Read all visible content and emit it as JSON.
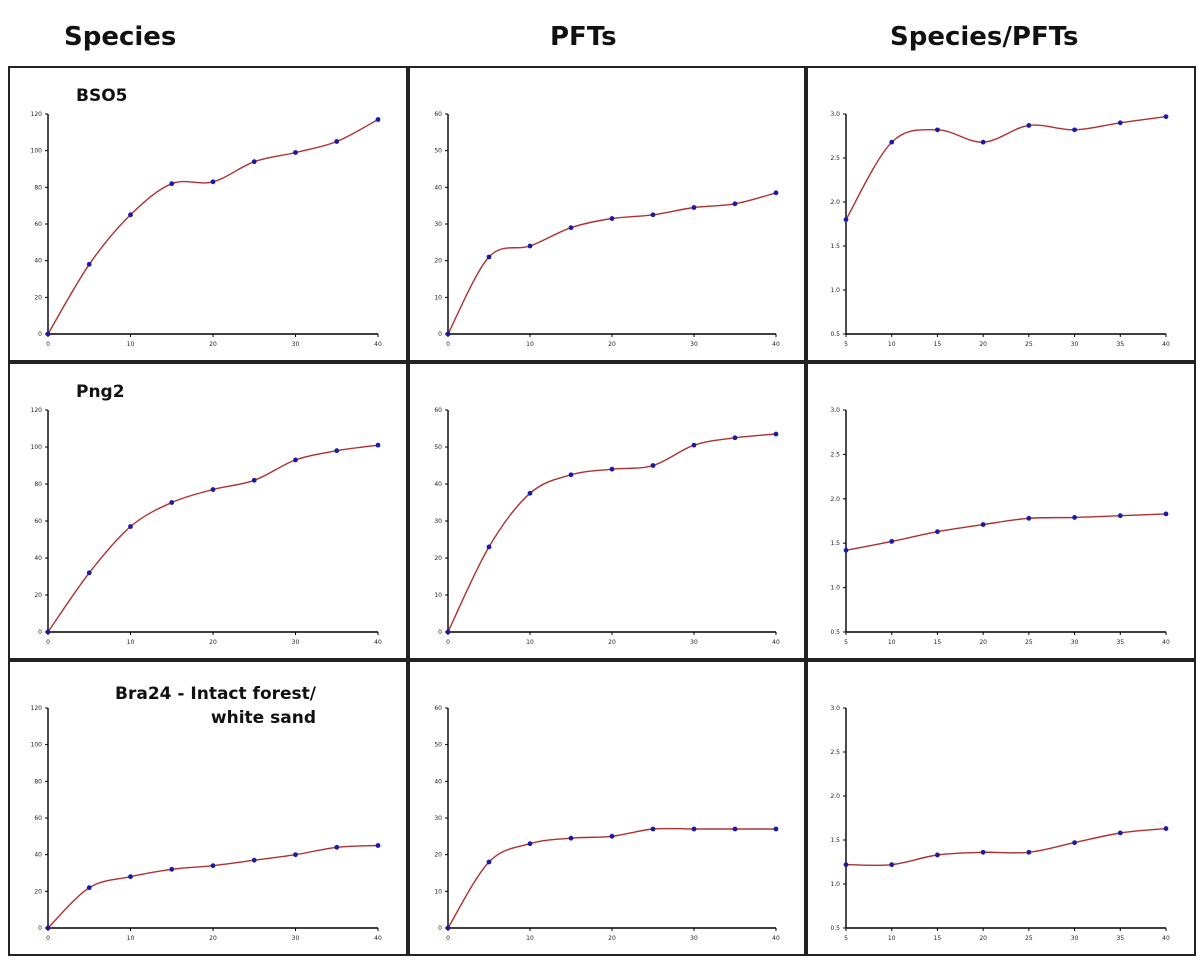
{
  "headers": {
    "species": "Species",
    "pfts": "PFTs",
    "ratio": "Species/PFTs"
  },
  "colors": {
    "curve": "#b03030",
    "marker": "#1a1aa8",
    "axis": "#000000"
  },
  "chart_data": [
    {
      "type": "line",
      "row": 1,
      "col": 1,
      "label": "BSO5",
      "x": [
        0,
        5,
        10,
        15,
        20,
        25,
        30,
        35,
        40
      ],
      "series": [
        {
          "values": [
            0,
            38,
            65,
            82,
            83,
            94,
            99,
            105,
            117
          ]
        }
      ],
      "xlim": [
        0,
        40
      ],
      "ylim": [
        0,
        120
      ],
      "xticks": [
        "0",
        "10",
        "20",
        "30",
        "40"
      ],
      "yticks": [
        "0",
        "20",
        "40",
        "60",
        "80",
        "100",
        "120"
      ]
    },
    {
      "type": "line",
      "row": 1,
      "col": 2,
      "label": "",
      "x": [
        0,
        5,
        10,
        15,
        20,
        25,
        30,
        35,
        40
      ],
      "series": [
        {
          "values": [
            0,
            21,
            24,
            29,
            31.5,
            32.5,
            34.5,
            35.5,
            38.5
          ]
        }
      ],
      "xlim": [
        0,
        40
      ],
      "ylim": [
        0,
        60
      ],
      "xticks": [
        "0",
        "10",
        "20",
        "30",
        "40"
      ],
      "yticks": [
        "0",
        "10",
        "20",
        "30",
        "40",
        "50",
        "60"
      ]
    },
    {
      "type": "line",
      "row": 1,
      "col": 3,
      "label": "",
      "x": [
        5,
        10,
        15,
        20,
        25,
        30,
        35,
        40
      ],
      "series": [
        {
          "values": [
            1.8,
            2.68,
            2.82,
            2.68,
            2.87,
            2.82,
            2.9,
            2.97
          ]
        }
      ],
      "xlim": [
        5,
        40
      ],
      "ylim": [
        0.5,
        3.0
      ],
      "xticks": [
        "5",
        "10",
        "15",
        "20",
        "25",
        "30",
        "35",
        "40"
      ],
      "yticks": [
        "0.5",
        "1.0",
        "1.5",
        "2.0",
        "2.5",
        "3.0"
      ]
    },
    {
      "type": "line",
      "row": 2,
      "col": 1,
      "label": "Png2",
      "x": [
        0,
        5,
        10,
        15,
        20,
        25,
        30,
        35,
        40
      ],
      "series": [
        {
          "values": [
            0,
            32,
            57,
            70,
            77,
            82,
            93,
            98,
            101
          ]
        }
      ],
      "xlim": [
        0,
        40
      ],
      "ylim": [
        0,
        120
      ],
      "xticks": [
        "0",
        "10",
        "20",
        "30",
        "40"
      ],
      "yticks": [
        "0",
        "20",
        "40",
        "60",
        "80",
        "100",
        "120"
      ]
    },
    {
      "type": "line",
      "row": 2,
      "col": 2,
      "label": "",
      "x": [
        0,
        5,
        10,
        15,
        20,
        25,
        30,
        35,
        40
      ],
      "series": [
        {
          "values": [
            0,
            23,
            37.5,
            42.5,
            44,
            45,
            50.5,
            52.5,
            53.5
          ]
        }
      ],
      "xlim": [
        0,
        40
      ],
      "ylim": [
        0,
        60
      ],
      "xticks": [
        "0",
        "10",
        "20",
        "30",
        "40"
      ],
      "yticks": [
        "0",
        "10",
        "20",
        "30",
        "40",
        "50",
        "60"
      ]
    },
    {
      "type": "line",
      "row": 2,
      "col": 3,
      "label": "",
      "x": [
        5,
        10,
        15,
        20,
        25,
        30,
        35,
        40
      ],
      "series": [
        {
          "values": [
            1.42,
            1.52,
            1.63,
            1.71,
            1.78,
            1.79,
            1.81,
            1.83
          ]
        }
      ],
      "xlim": [
        5,
        40
      ],
      "ylim": [
        0.5,
        3.0
      ],
      "xticks": [
        "5",
        "10",
        "15",
        "20",
        "25",
        "30",
        "35",
        "40"
      ],
      "yticks": [
        "0.5",
        "1.0",
        "1.5",
        "2.0",
        "2.5",
        "3.0"
      ]
    },
    {
      "type": "line",
      "row": 3,
      "col": 1,
      "label": "Bra24 - Intact forest/ white sand",
      "x": [
        0,
        5,
        10,
        15,
        20,
        25,
        30,
        35,
        40
      ],
      "series": [
        {
          "values": [
            0,
            22,
            28,
            32,
            34,
            37,
            40,
            44,
            45
          ]
        }
      ],
      "xlim": [
        0,
        40
      ],
      "ylim": [
        0,
        120
      ],
      "xticks": [
        "0",
        "10",
        "20",
        "30",
        "40"
      ],
      "yticks": [
        "0",
        "20",
        "40",
        "60",
        "80",
        "100",
        "120"
      ]
    },
    {
      "type": "line",
      "row": 3,
      "col": 2,
      "label": "",
      "x": [
        0,
        5,
        10,
        15,
        20,
        25,
        30,
        35,
        40
      ],
      "series": [
        {
          "values": [
            0,
            18,
            23,
            24.5,
            25,
            27,
            27,
            27,
            27
          ]
        }
      ],
      "xlim": [
        0,
        40
      ],
      "ylim": [
        0,
        60
      ],
      "xticks": [
        "0",
        "10",
        "20",
        "30",
        "40"
      ],
      "yticks": [
        "0",
        "10",
        "20",
        "30",
        "40",
        "50",
        "60"
      ]
    },
    {
      "type": "line",
      "row": 3,
      "col": 3,
      "label": "",
      "x": [
        5,
        10,
        15,
        20,
        25,
        30,
        35,
        40
      ],
      "series": [
        {
          "values": [
            1.22,
            1.22,
            1.33,
            1.36,
            1.36,
            1.47,
            1.58,
            1.63
          ]
        }
      ],
      "xlim": [
        5,
        40
      ],
      "ylim": [
        0.5,
        3.0
      ],
      "xticks": [
        "5",
        "10",
        "15",
        "20",
        "25",
        "30",
        "35",
        "40"
      ],
      "yticks": [
        "0.5",
        "1.0",
        "1.5",
        "2.0",
        "2.5",
        "3.0"
      ]
    }
  ]
}
